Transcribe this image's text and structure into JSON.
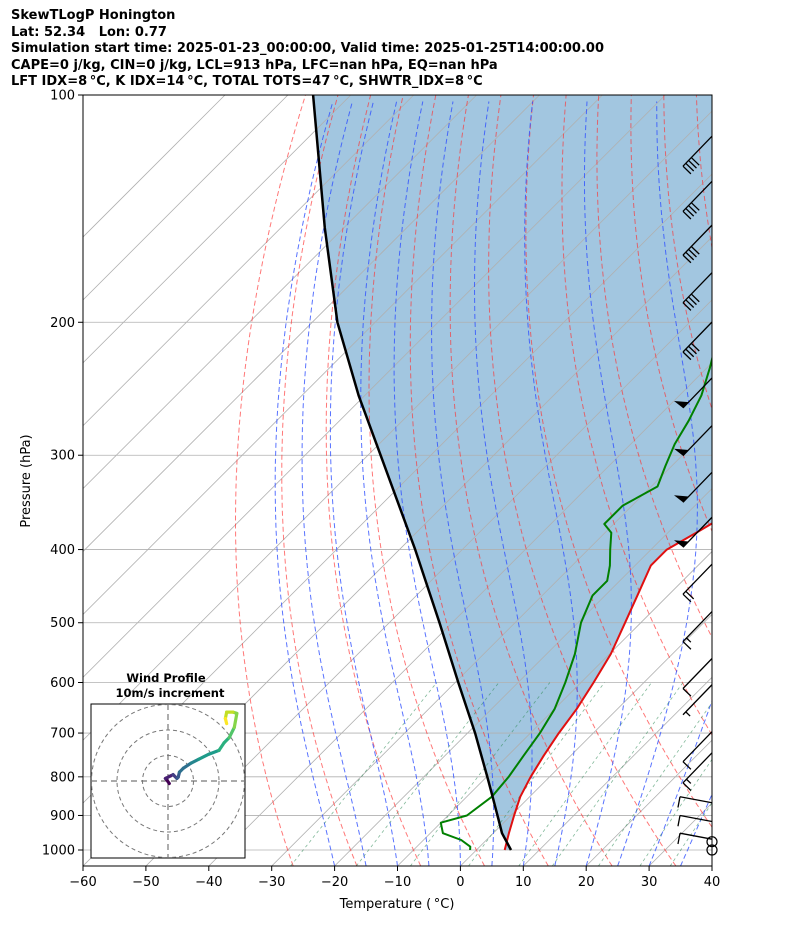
{
  "header": {
    "line1": "SkewTLogP Honington",
    "line2": "Lat: 52.34   Lon: 0.77",
    "line3": "Simulation start time: 2025-01-23_00:00:00, Valid time: 2025-01-25T14:00:00.00",
    "line4": "CAPE=0 j/kg, CIN=0 j/kg, LCL=913 hPa, LFC=nan hPa, EQ=nan hPa",
    "line5": "LFT IDX=8 °C, K IDX=14 °C, TOTAL TOTS=47 °C, SHWTR_IDX=8 °C"
  },
  "chart_data": {
    "type": "line",
    "xlabel": "Temperature ( °C)",
    "ylabel": "Pressure (hPa)",
    "xlim": [
      -60,
      40
    ],
    "ylim": [
      1050,
      100
    ],
    "y_scale": "log",
    "grid": true,
    "x_ticks": [
      -60,
      -50,
      -40,
      -30,
      -20,
      -10,
      0,
      10,
      20,
      30,
      40
    ],
    "x_tick_labels": [
      "−60",
      "−50",
      "−40",
      "−30",
      "−20",
      "−10",
      "0",
      "10",
      "20",
      "30",
      "40"
    ],
    "y_ticks": [
      1000,
      900,
      800,
      700,
      600,
      500,
      400,
      300,
      200,
      100
    ],
    "y_tick_labels": [
      "1000",
      "900",
      "800",
      "700",
      "600",
      "500",
      "400",
      "300",
      "200",
      "100"
    ],
    "series": [
      {
        "role": "temperature",
        "color": "#e01010",
        "pressure": [
          1000,
          950,
          900,
          850,
          800,
          750,
          700,
          650,
          600,
          550,
          500,
          450,
          420,
          400,
          380,
          360,
          330,
          300,
          280,
          250,
          230,
          210,
          200,
          180,
          170,
          160,
          150,
          140,
          130,
          120,
          110,
          100
        ],
        "temperature": [
          4.5,
          2.5,
          0.5,
          -1.5,
          -3.0,
          -4.3,
          -5.5,
          -6.5,
          -8.0,
          -9.8,
          -12.5,
          -15.5,
          -17.5,
          -17.5,
          -15.5,
          -13.5,
          -13.5,
          -13.5,
          -13.0,
          -13.0,
          -12.5,
          -11.5,
          -9.5,
          -7.5,
          -5.0,
          -3.5,
          -3.0,
          -2.0,
          -1.0,
          0.0,
          1.5,
          1.5
        ]
      },
      {
        "role": "dewpoint",
        "color": "#008000",
        "pressure": [
          1000,
          990,
          970,
          950,
          920,
          900,
          850,
          800,
          750,
          700,
          650,
          600,
          550,
          500,
          460,
          440,
          420,
          400,
          380,
          370,
          350,
          330,
          310,
          290,
          270,
          250,
          230,
          200,
          180,
          170,
          160,
          150,
          140,
          130,
          120,
          110,
          100
        ],
        "temperature": [
          -1.0,
          -1.5,
          -4.0,
          -8.0,
          -10.0,
          -7.0,
          -6.0,
          -6.5,
          -7.5,
          -8.5,
          -10.0,
          -12.5,
          -15.5,
          -19.5,
          -22.0,
          -22.0,
          -24.0,
          -26.5,
          -29.0,
          -31.5,
          -31.5,
          -29.0,
          -31.0,
          -33.0,
          -34.5,
          -36.5,
          -39.5,
          -45.0,
          -48.5,
          -48.5,
          -47.0,
          -45.0,
          -43.5,
          -43.0,
          -42.5,
          -42.0,
          -41.0
        ]
      },
      {
        "role": "parcel_profile",
        "color": "#000000",
        "pressure": [
          1000,
          950,
          913,
          850,
          800,
          700,
          600,
          500,
          400,
          300,
          250,
          200,
          150,
          100
        ],
        "temperature": [
          5.5,
          1.4,
          -1.2,
          -5.9,
          -9.9,
          -18.8,
          -29.5,
          -42.0,
          -57.5,
          -78.0,
          -91.0,
          -106.0,
          -123.0,
          -146.0
        ]
      }
    ],
    "wind_barbs": [
      {
        "pressure": 1000,
        "glyph": "calm"
      },
      {
        "pressure": 975,
        "glyph": "calm"
      },
      {
        "pressure": 950,
        "glyph": "10"
      },
      {
        "pressure": 900,
        "glyph": "10"
      },
      {
        "pressure": 850,
        "glyph": "10"
      },
      {
        "pressure": 800,
        "glyph": "15"
      },
      {
        "pressure": 750,
        "glyph": "10"
      },
      {
        "pressure": 650,
        "glyph": "5"
      },
      {
        "pressure": 600,
        "glyph": "10"
      },
      {
        "pressure": 520,
        "glyph": "15"
      },
      {
        "pressure": 450,
        "glyph": "20"
      },
      {
        "pressure": 390,
        "glyph": "flag"
      },
      {
        "pressure": 340,
        "glyph": "flag"
      },
      {
        "pressure": 295,
        "glyph": "flag"
      },
      {
        "pressure": 255,
        "glyph": "flag"
      },
      {
        "pressure": 215,
        "glyph": "40"
      },
      {
        "pressure": 185,
        "glyph": "40"
      },
      {
        "pressure": 160,
        "glyph": "40"
      },
      {
        "pressure": 140,
        "glyph": "40"
      },
      {
        "pressure": 122,
        "glyph": "40"
      }
    ],
    "hodograph": {
      "title": "Wind Profile",
      "subtitle": "10m/s increment",
      "ring_increment_ms": 10,
      "u": [
        0.5,
        -0.5,
        -1.0,
        1.0,
        2.0,
        3.5,
        4.0,
        4.5,
        6.0,
        9.0,
        12.0,
        16.0,
        20.0,
        22.0,
        24.0,
        26.0,
        27.0,
        25.5,
        23.0,
        22.5,
        23.0
      ],
      "v": [
        -1.0,
        0.5,
        1.0,
        2.0,
        2.5,
        1.0,
        1.5,
        3.5,
        5.0,
        7.0,
        8.5,
        10.5,
        12.0,
        15.0,
        17.0,
        21.0,
        26.5,
        27.0,
        27.0,
        24.5,
        22.5
      ]
    }
  }
}
